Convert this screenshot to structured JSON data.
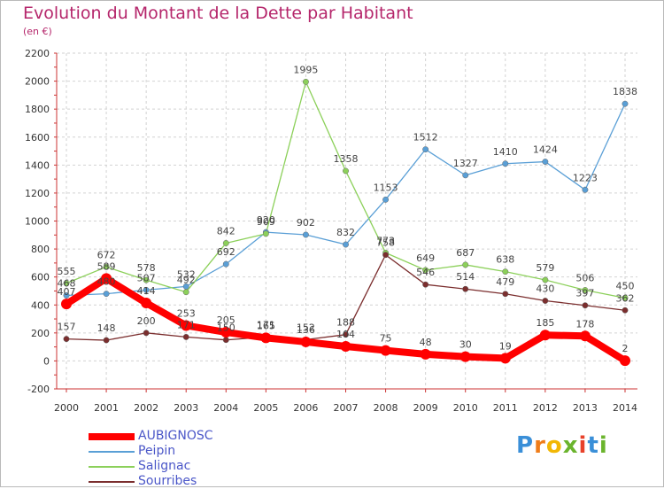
{
  "title": "Evolution du Montant de la Dette par Habitant",
  "unit": "(en €)",
  "logo": {
    "text": "Proxiti",
    "letters": [
      "P",
      "r",
      "o",
      "x",
      "i",
      "t",
      "i"
    ],
    "colors": [
      "#3a8fd8",
      "#ef7d1a",
      "#f2b705",
      "#6bb42d",
      "#e8412a",
      "#3a8fd8",
      "#6bb42d"
    ]
  },
  "chart_data": {
    "type": "line",
    "x": [
      "2000",
      "2001",
      "2002",
      "2003",
      "2004",
      "2005",
      "2006",
      "2007",
      "2008",
      "2009",
      "2010",
      "2011",
      "2012",
      "2013",
      "2014"
    ],
    "ylim": [
      -200,
      2200
    ],
    "yticks": [
      "-200",
      "0",
      "200",
      "400",
      "600",
      "800",
      "1000",
      "1200",
      "1400",
      "1600",
      "1800",
      "2000",
      "2200"
    ],
    "grid": true,
    "legend_position": "bottom-left",
    "series": [
      {
        "name": "AUBIGNOSC",
        "color": "#ff0000",
        "values": [
          407,
          589,
          414,
          253,
          205,
          165,
          136,
          104,
          75,
          48,
          30,
          19,
          185,
          178,
          2
        ],
        "labels": [
          "407",
          "589",
          "414",
          "253",
          "205",
          "165",
          "136",
          "104",
          "75",
          "48",
          "30",
          "19",
          "185",
          "178",
          "2"
        ]
      },
      {
        "name": "Peipin",
        "color": "#5a9fd6",
        "values": [
          468,
          480,
          507,
          532,
          692,
          920,
          902,
          832,
          1153,
          1512,
          1327,
          1410,
          1424,
          1223,
          1838
        ],
        "labels": [
          "468",
          "480",
          "507",
          "532",
          "692",
          "920",
          "902",
          "832",
          "1153",
          "1512",
          "1327",
          "1410",
          "1424",
          "1223",
          "1838"
        ]
      },
      {
        "name": "Salignac",
        "color": "#8cd05a",
        "values": [
          555,
          672,
          578,
          492,
          842,
          909,
          1995,
          1358,
          773,
          649,
          687,
          638,
          579,
          506,
          450
        ],
        "labels": [
          "555",
          "672",
          "578",
          "492",
          "842",
          "909",
          "1995",
          "1358",
          "773",
          "649",
          "687",
          "638",
          "579",
          "506",
          "450"
        ]
      },
      {
        "name": "Sourribes",
        "color": "#7b2e2e",
        "values": [
          157,
          148,
          200,
          171,
          150,
          171,
          152,
          188,
          758,
          546,
          514,
          479,
          430,
          397,
          362
        ],
        "labels": [
          "157",
          "148",
          "200",
          "171",
          "150",
          "171",
          "152",
          "188",
          "758",
          "546",
          "514",
          "479",
          "430",
          "397",
          "362"
        ]
      }
    ]
  }
}
